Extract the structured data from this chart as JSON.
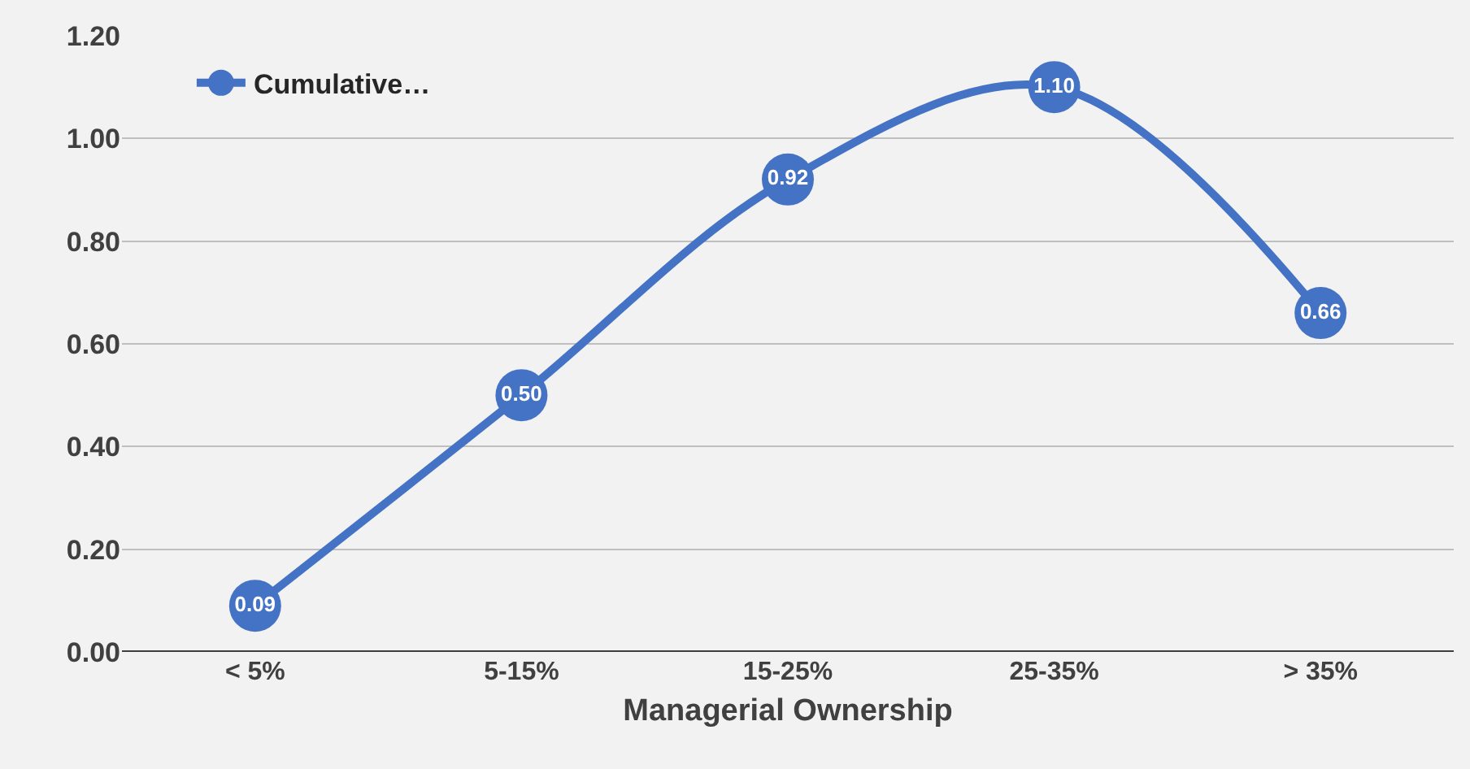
{
  "chart_data": {
    "type": "line",
    "xlabel": "Managerial Ownership",
    "categories": [
      "< 5%",
      "5-15%",
      "15-25%",
      "25-35%",
      "> 35%"
    ],
    "series": [
      {
        "name": "Cumulative…",
        "color": "#4472c4",
        "values": [
          0.09,
          0.5,
          0.92,
          1.1,
          0.66
        ],
        "value_labels": [
          "0.09",
          "0.50",
          "0.92",
          "1.10",
          "0.66"
        ]
      }
    ],
    "ylim": [
      0,
      1.2
    ],
    "yticks": [
      {
        "value": 0,
        "label": "0.00"
      },
      {
        "value": 0.2,
        "label": "0.20"
      },
      {
        "value": 0.4,
        "label": "0.40"
      },
      {
        "value": 0.6,
        "label": "0.60"
      },
      {
        "value": 0.8,
        "label": "0.80"
      },
      {
        "value": 1.0,
        "label": "1.00"
      },
      {
        "value": 1.2,
        "label": "1.20"
      }
    ],
    "grid": "y",
    "legend": "top left",
    "marker": "circle",
    "line_style": "solid"
  }
}
